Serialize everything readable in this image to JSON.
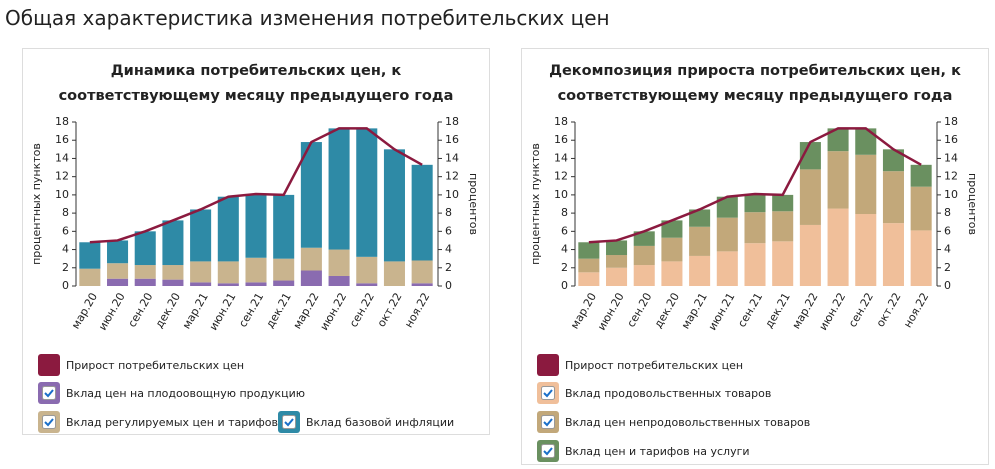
{
  "page_title": "Общая характеристика изменения потребительских цен",
  "chart_data": [
    {
      "type": "bar",
      "title": "Динамика потребительских цен, к соответствующему месяцу предыдущего года",
      "categories": [
        "мар.20",
        "июн.20",
        "сен.20",
        "дек.20",
        "мар.21",
        "июн.21",
        "сен.21",
        "дек.21",
        "мар.22",
        "июн.22",
        "сен.22",
        "окт.22",
        "ноя.22"
      ],
      "ylabel": "процентных пунктов",
      "y2label": "процентов",
      "ylim": [
        0,
        18
      ],
      "yticks": [
        0,
        2,
        4,
        6,
        8,
        10,
        12,
        14,
        16,
        18
      ],
      "y2lim": [
        0,
        18
      ],
      "y2ticks": [
        0,
        2,
        4,
        6,
        8,
        10,
        12,
        14,
        16,
        18
      ],
      "series": [
        {
          "name": "Прирост потребительских цен",
          "type": "line",
          "color": "#8b1a3f",
          "values": [
            4.8,
            5.0,
            6.0,
            7.2,
            8.4,
            9.8,
            10.1,
            10.0,
            15.8,
            17.3,
            17.3,
            15.0,
            13.3
          ]
        },
        {
          "name": "Вклад цен на плодоовощную продукцию",
          "type": "bar",
          "color": "#8a6bb0",
          "values": [
            0,
            0.8,
            0.8,
            0.7,
            0.4,
            0.3,
            0.4,
            0.6,
            1.7,
            1.1,
            0.3,
            0,
            0.3
          ]
        },
        {
          "name": "Вклад регулируемых цен и тарифов",
          "type": "bar",
          "color": "#c9b48e",
          "values": [
            1.9,
            1.7,
            1.5,
            1.6,
            2.3,
            2.4,
            2.7,
            2.4,
            2.5,
            2.9,
            2.9,
            2.7,
            2.5
          ]
        },
        {
          "name": "Вклад базовой инфляции",
          "type": "bar",
          "color": "#2e8aa6",
          "values": [
            2.9,
            2.5,
            3.7,
            4.9,
            5.7,
            7.1,
            7.0,
            7.0,
            11.6,
            13.3,
            14.1,
            12.3,
            10.5
          ]
        }
      ]
    },
    {
      "type": "bar",
      "title": "Декомпозиция прироста потребительских цен, к соответствующему месяцу предыдущего года",
      "categories": [
        "мар.20",
        "июн.20",
        "сен.20",
        "дек.20",
        "мар.21",
        "июн.21",
        "сен.21",
        "дек.21",
        "мар.22",
        "июн.22",
        "сен.22",
        "окт.22",
        "ноя.22"
      ],
      "ylabel": "процентных пунктов",
      "y2label": "процентов",
      "ylim": [
        0,
        18
      ],
      "yticks": [
        0,
        2,
        4,
        6,
        8,
        10,
        12,
        14,
        16,
        18
      ],
      "y2lim": [
        0,
        18
      ],
      "y2ticks": [
        0,
        2,
        4,
        6,
        8,
        10,
        12,
        14,
        16,
        18
      ],
      "series": [
        {
          "name": "Прирост потребительских цен",
          "type": "line",
          "color": "#8b1a3f",
          "values": [
            4.8,
            5.0,
            6.0,
            7.2,
            8.4,
            9.8,
            10.1,
            10.0,
            15.8,
            17.3,
            17.3,
            15.0,
            13.3
          ]
        },
        {
          "name": "Вклад продовольственных товаров",
          "type": "bar",
          "color": "#f0bf9a",
          "values": [
            1.5,
            2.0,
            2.3,
            2.7,
            3.3,
            3.8,
            4.7,
            4.9,
            6.7,
            8.5,
            7.9,
            6.9,
            6.1
          ]
        },
        {
          "name": "Вклад цен непродовольственных товаров",
          "type": "bar",
          "color": "#c2a87a",
          "values": [
            1.5,
            1.4,
            2.1,
            2.6,
            3.2,
            3.7,
            3.4,
            3.3,
            6.1,
            6.3,
            6.5,
            5.7,
            4.8
          ]
        },
        {
          "name": "Вклад цен и тарифов на услуги",
          "type": "bar",
          "color": "#6a9060",
          "values": [
            1.8,
            1.6,
            1.6,
            1.9,
            1.9,
            2.3,
            2.0,
            1.8,
            3.0,
            2.5,
            2.9,
            2.4,
            2.4
          ]
        }
      ]
    }
  ]
}
